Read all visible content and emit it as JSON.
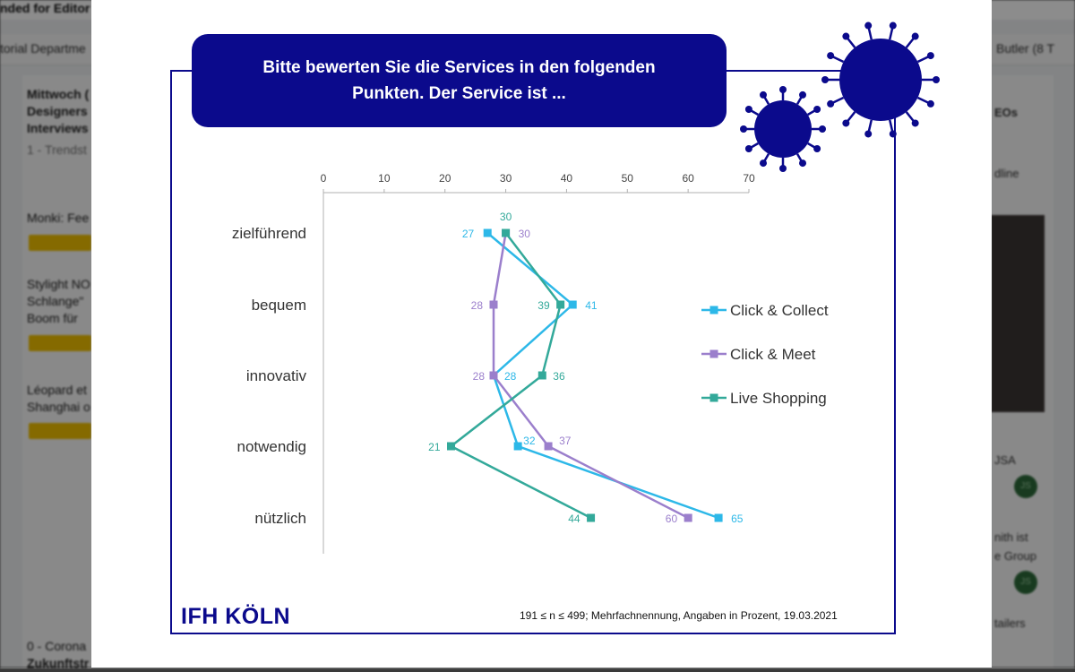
{
  "background": {
    "top_title": "nded for Editor",
    "nav_left": "torial Departme",
    "nav_right": "Butler (8 T",
    "cards": [
      "Mittwoch (",
      "Designers",
      "Interviews",
      "1 - Trendst",
      "Monki: Fee",
      "Stylight NO",
      "Schlange\"",
      "Boom für",
      "Léopard et",
      "Shanghai o",
      "0 - Corona",
      "Zukunftstr"
    ],
    "right_items": [
      "EOs",
      "dline",
      "JSA",
      "nith ist",
      "e Group",
      "tailers"
    ],
    "avatar_initials": "JS"
  },
  "slide": {
    "banner_line1": "Bitte bewerten Sie die Services in den folgenden",
    "banner_line2": "Punkten. Der Service ist ...",
    "logo": "IFH KÖLN",
    "footnote": "191 ≤ n ≤ 499; Mehrfachnennung, Angaben in Prozent, 19.03.2021",
    "icons": [
      "virus-icon",
      "virus-icon"
    ],
    "colors": {
      "brand": "#0b0a8c",
      "click_collect": "#2db8e8",
      "click_meet": "#9b7fcc",
      "live_shopping": "#33a99a"
    }
  },
  "chart_data": {
    "type": "line",
    "orientation": "horizontal",
    "categories": [
      "zielführend",
      "bequem",
      "innovativ",
      "notwendig",
      "nützlich"
    ],
    "xlim": [
      0,
      70
    ],
    "xticks": [
      0,
      10,
      20,
      30,
      40,
      50,
      60,
      70
    ],
    "legend_position": "right",
    "series": [
      {
        "name": "Click & Collect",
        "values": [
          27,
          41,
          28,
          32,
          65
        ],
        "color": "#2db8e8"
      },
      {
        "name": "Click & Meet",
        "values": [
          30,
          28,
          28,
          37,
          60
        ],
        "color": "#9b7fcc"
      },
      {
        "name": "Live Shopping",
        "values": [
          30,
          39,
          36,
          21,
          44
        ],
        "color": "#33a99a"
      }
    ]
  }
}
